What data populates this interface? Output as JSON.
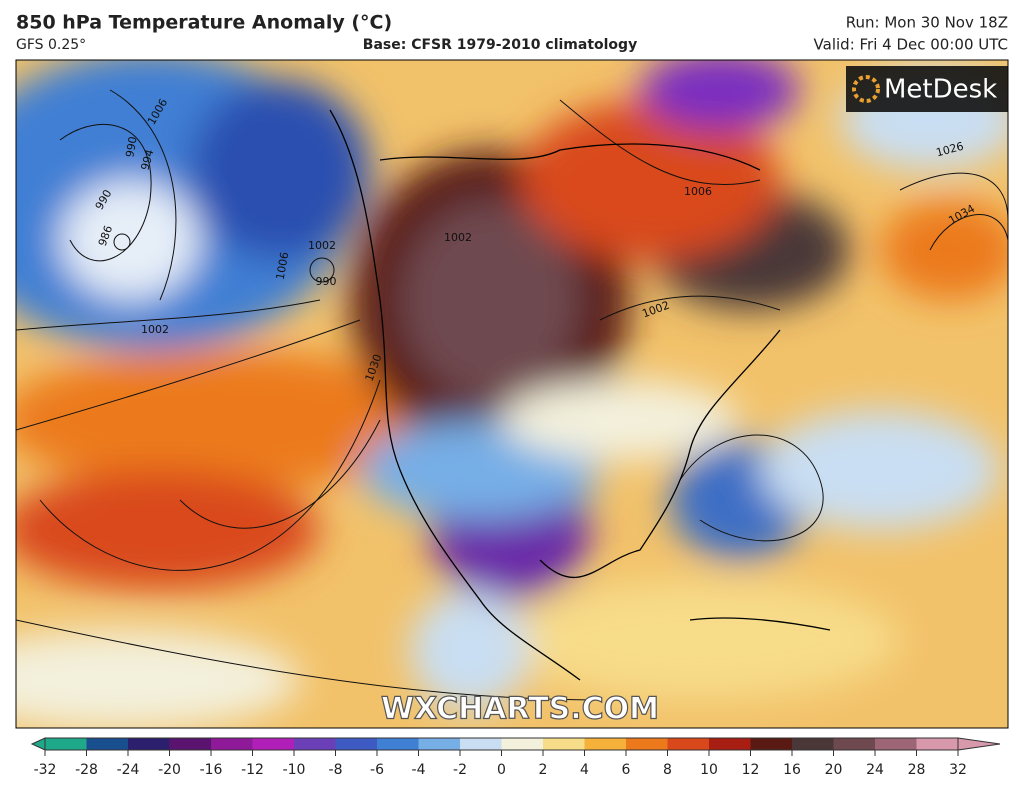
{
  "header": {
    "title": "850 hPa Temperature Anomaly (°C)",
    "model": "GFS 0.25°",
    "base": "Base: CFSR 1979-2010 climatology",
    "run": "Run: Mon 30 Nov 18Z",
    "valid": "Valid: Fri 4 Dec 00:00 UTC"
  },
  "logo": "MetDesk",
  "watermark": "WXCHARTS.COM",
  "isobar_labels": [
    1006,
    994,
    990,
    986,
    990,
    1002,
    1006,
    1002,
    990,
    1006,
    1002,
    1002,
    1026,
    1034,
    1030
  ],
  "colorbar": {
    "ticks": [
      -32,
      -28,
      -24,
      -20,
      -16,
      -12,
      -10,
      -8,
      -6,
      -4,
      -2,
      0,
      2,
      4,
      6,
      8,
      10,
      12,
      16,
      20,
      24,
      28,
      32
    ],
    "colors": [
      "#1fa88a",
      "#1a4f8f",
      "#2c1f6e",
      "#5a1470",
      "#8e1a9a",
      "#b020b8",
      "#6a3fb8",
      "#3e5bc4",
      "#3f7fd4",
      "#76aee6",
      "#c9def2",
      "#f3f0dc",
      "#f7dc8a",
      "#f6b13a",
      "#ec7a1c",
      "#d9481a",
      "#a81e12",
      "#5a1a14",
      "#4a3838",
      "#6e4a50",
      "#9c6676",
      "#d899ad"
    ]
  }
}
